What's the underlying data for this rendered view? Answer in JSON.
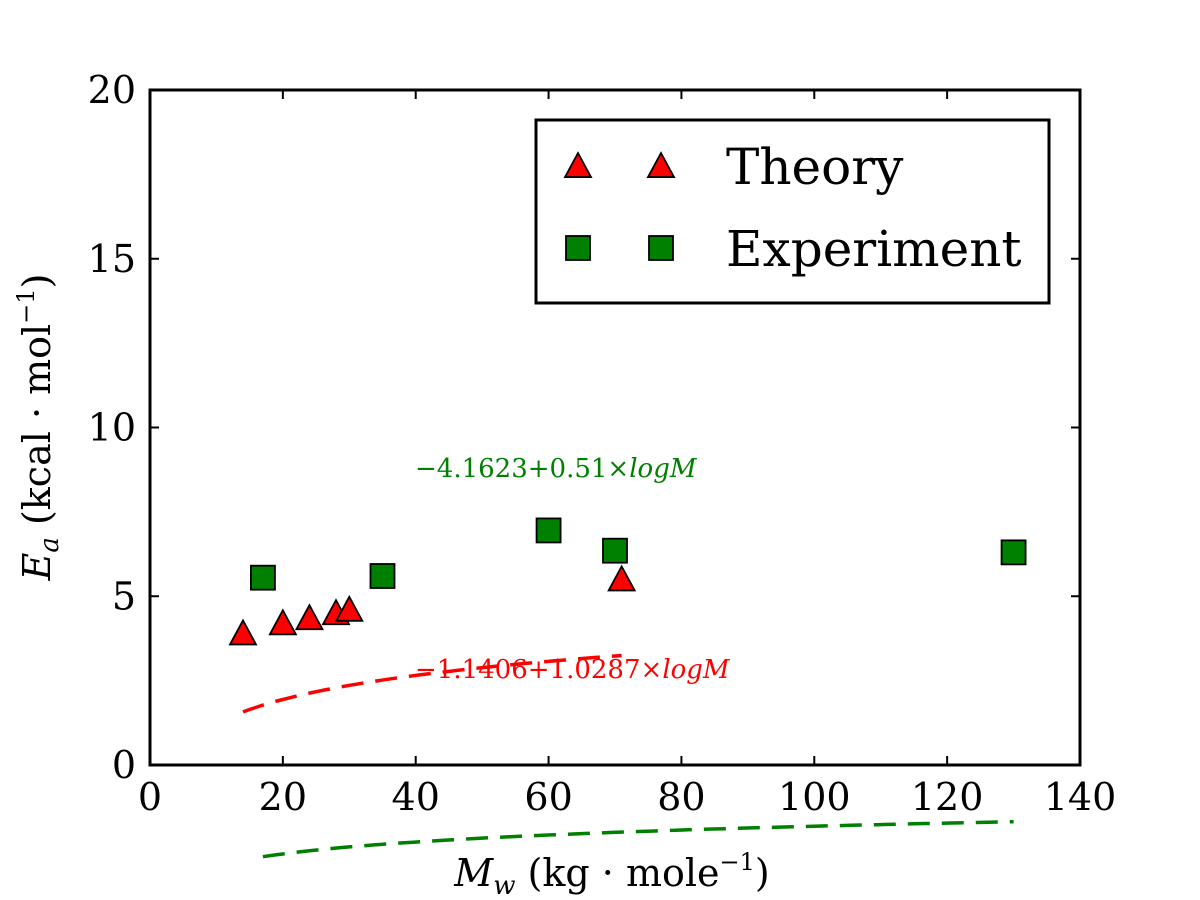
{
  "chart_data": {
    "type": "scatter",
    "xlabel": "M_w (kg · mole⁻¹)",
    "ylabel": "E_a (kcal · mol⁻¹)",
    "xlim": [
      0,
      140
    ],
    "ylim": [
      0,
      20
    ],
    "xticks": [
      "0",
      "20",
      "40",
      "60",
      "80",
      "100",
      "120",
      "140"
    ],
    "yticks": [
      "0",
      "5",
      "10",
      "15",
      "20"
    ],
    "grid": false,
    "legend_position": "upper-right",
    "series": [
      {
        "name": "Theory",
        "marker": "triangle",
        "color": "#ff0000",
        "x": [
          14,
          20,
          24,
          28,
          30,
          71
        ],
        "y": [
          3.9,
          4.2,
          4.35,
          4.5,
          4.6,
          5.5
        ]
      },
      {
        "name": "Experiment",
        "marker": "square",
        "color": "#008000",
        "x": [
          17,
          35,
          60,
          70,
          130
        ],
        "y": [
          5.55,
          5.6,
          6.95,
          6.35,
          6.3
        ]
      }
    ],
    "fits": [
      {
        "series": "Theory",
        "label": "−1.1406+1.0287×logM",
        "intercept": -1.1406,
        "slope": 1.0287,
        "x_range": [
          14,
          71
        ],
        "color": "#ff0000"
      },
      {
        "series": "Experiment",
        "label": "−4.1623+0.51×logM",
        "intercept": -4.1623,
        "slope": 0.51,
        "x_range": [
          17,
          130
        ],
        "color": "#008000"
      }
    ]
  }
}
